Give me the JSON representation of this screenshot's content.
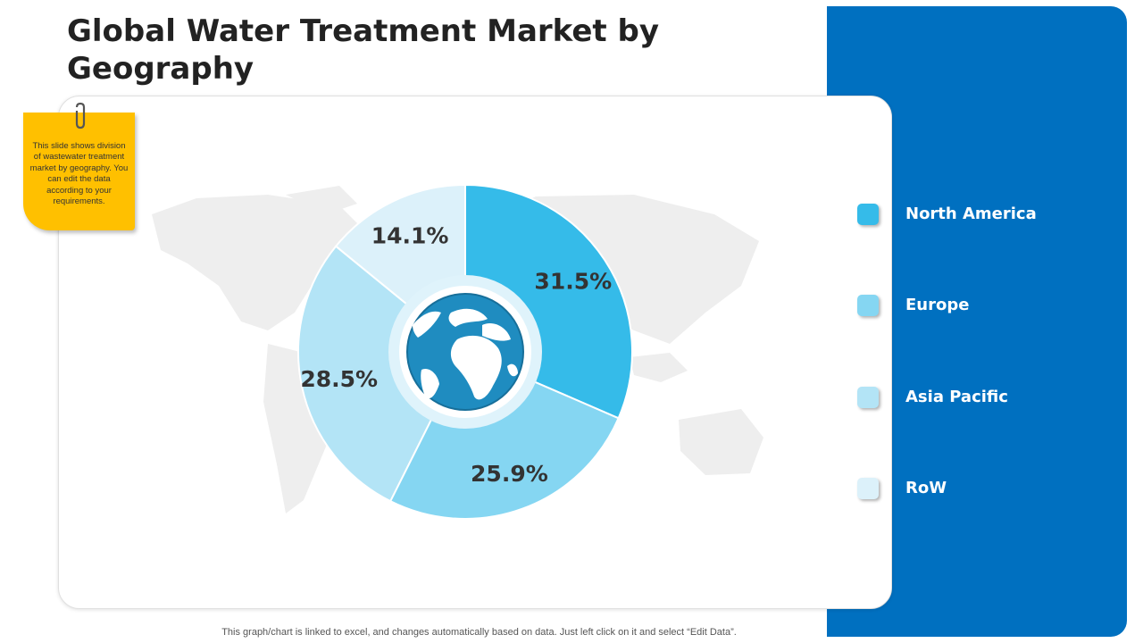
{
  "title": "Global Water Treatment Market by Geography",
  "note": "This slide shows division of wastewater treatment market by geography. You can edit the data according to your requirements.",
  "footer": "This graph/chart is linked to excel, and changes automatically based on data. Just left click on it and select “Edit Data”.",
  "colors": {
    "panel": "#0070c0",
    "note": "#ffc000"
  },
  "chart_data": {
    "type": "pie",
    "title": "",
    "legend_position": "right",
    "categories": [
      "North America",
      "Europe",
      "Asia Pacific",
      "RoW"
    ],
    "values": [
      31.5,
      25.9,
      28.5,
      14.1
    ],
    "labels": [
      "31.5%",
      "25.9%",
      "28.5%",
      "14.1%"
    ],
    "colors": [
      "#35bbe9",
      "#85d6f2",
      "#b3e4f6",
      "#dcf1fa"
    ],
    "center_icon": "globe-icon",
    "background_icon": "world-map"
  }
}
